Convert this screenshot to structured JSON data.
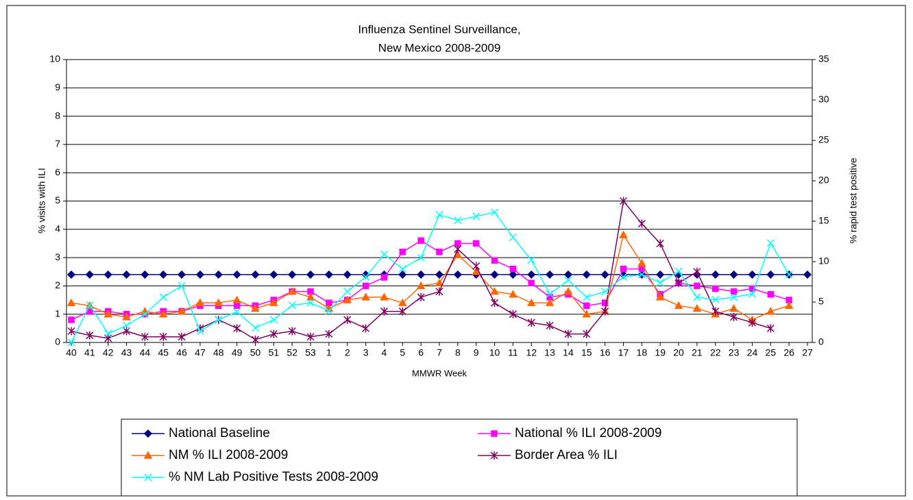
{
  "chart_data": {
    "type": "line",
    "title": [
      "Influenza Sentinel Surveillance,",
      "New Mexico 2008-2009"
    ],
    "x_label": "MMWR Week",
    "y_label": "% visits with ILI",
    "y2_label": "% rapid test positive",
    "categories": [
      "40",
      "41",
      "42",
      "43",
      "44",
      "45",
      "46",
      "47",
      "48",
      "49",
      "50",
      "51",
      "52",
      "53",
      "1",
      "2",
      "3",
      "4",
      "5",
      "6",
      "7",
      "8",
      "9",
      "10",
      "11",
      "12",
      "13",
      "14",
      "15",
      "16",
      "17",
      "18",
      "19",
      "20",
      "21",
      "22",
      "23",
      "24",
      "25",
      "26",
      "27"
    ],
    "ylim": [
      0,
      10
    ],
    "yticks": [
      0,
      1,
      2,
      3,
      4,
      5,
      6,
      7,
      8,
      9,
      10
    ],
    "y2lim": [
      0,
      35
    ],
    "y2ticks": [
      0,
      5,
      10,
      15,
      20,
      25,
      30,
      35
    ],
    "grid": true,
    "legend": "bottom",
    "series": [
      {
        "name": "National Baseline",
        "color": "#000080",
        "marker": "diamond",
        "values": [
          2.4,
          2.4,
          2.4,
          2.4,
          2.4,
          2.4,
          2.4,
          2.4,
          2.4,
          2.4,
          2.4,
          2.4,
          2.4,
          2.4,
          2.4,
          2.4,
          2.4,
          2.4,
          2.4,
          2.4,
          2.4,
          2.4,
          2.4,
          2.4,
          2.4,
          2.4,
          2.4,
          2.4,
          2.4,
          2.4,
          2.4,
          2.4,
          2.4,
          2.4,
          2.4,
          2.4,
          2.4,
          2.4,
          2.4,
          2.4,
          2.4
        ]
      },
      {
        "name": "National % ILI 2008-2009",
        "color": "#ff00ff",
        "marker": "square",
        "values": [
          0.8,
          1.1,
          1.1,
          1.0,
          1.0,
          1.1,
          1.1,
          1.3,
          1.3,
          1.3,
          1.3,
          1.5,
          1.8,
          1.8,
          1.4,
          1.5,
          2.0,
          2.3,
          3.2,
          3.6,
          3.2,
          3.5,
          3.5,
          2.9,
          2.6,
          2.1,
          1.6,
          1.7,
          1.3,
          1.4,
          2.6,
          2.6,
          1.7,
          2.1,
          2.0,
          1.9,
          1.8,
          1.9,
          1.7,
          1.5,
          null
        ]
      },
      {
        "name": "NM % ILI 2008-2009",
        "color": "#ff6600",
        "marker": "triangle",
        "values": [
          1.4,
          1.3,
          1.0,
          0.9,
          1.1,
          1.0,
          1.1,
          1.4,
          1.4,
          1.5,
          1.2,
          1.4,
          1.8,
          1.6,
          1.2,
          1.5,
          1.6,
          1.6,
          1.4,
          2.0,
          2.1,
          3.1,
          2.5,
          1.8,
          1.7,
          1.4,
          1.4,
          1.8,
          1.0,
          1.1,
          3.8,
          2.8,
          1.6,
          1.3,
          1.2,
          1.0,
          1.2,
          0.8,
          1.1,
          1.3,
          null
        ]
      },
      {
        "name": "Border Area % ILI",
        "color": "#800060",
        "marker": "star",
        "values": [
          0.4,
          0.25,
          0.15,
          0.4,
          0.2,
          0.2,
          0.2,
          0.5,
          0.8,
          0.5,
          0.1,
          0.3,
          0.4,
          0.2,
          0.3,
          0.8,
          0.5,
          1.1,
          1.1,
          1.6,
          1.8,
          3.3,
          2.7,
          1.4,
          1.0,
          0.7,
          0.6,
          0.3,
          0.3,
          1.1,
          5.0,
          4.2,
          3.5,
          2.1,
          2.5,
          1.1,
          0.9,
          0.7,
          0.5,
          null,
          null
        ]
      },
      {
        "name": "% NM Lab Positive Tests 2008-2009",
        "color": "#00ffff",
        "marker": "x",
        "axis": "y2",
        "values": [
          0,
          4.6,
          1.1,
          2.1,
          3.5,
          5.6,
          7.0,
          1.4,
          2.8,
          3.8,
          1.8,
          2.8,
          4.6,
          4.9,
          3.9,
          6.3,
          8.1,
          10.9,
          9.1,
          10.5,
          15.8,
          15.1,
          15.6,
          16.1,
          13.0,
          10.2,
          6.0,
          7.7,
          5.6,
          6.3,
          8.1,
          8.4,
          7.4,
          8.8,
          5.6,
          5.3,
          5.6,
          6.0,
          12.3,
          8.4,
          null
        ]
      }
    ]
  }
}
